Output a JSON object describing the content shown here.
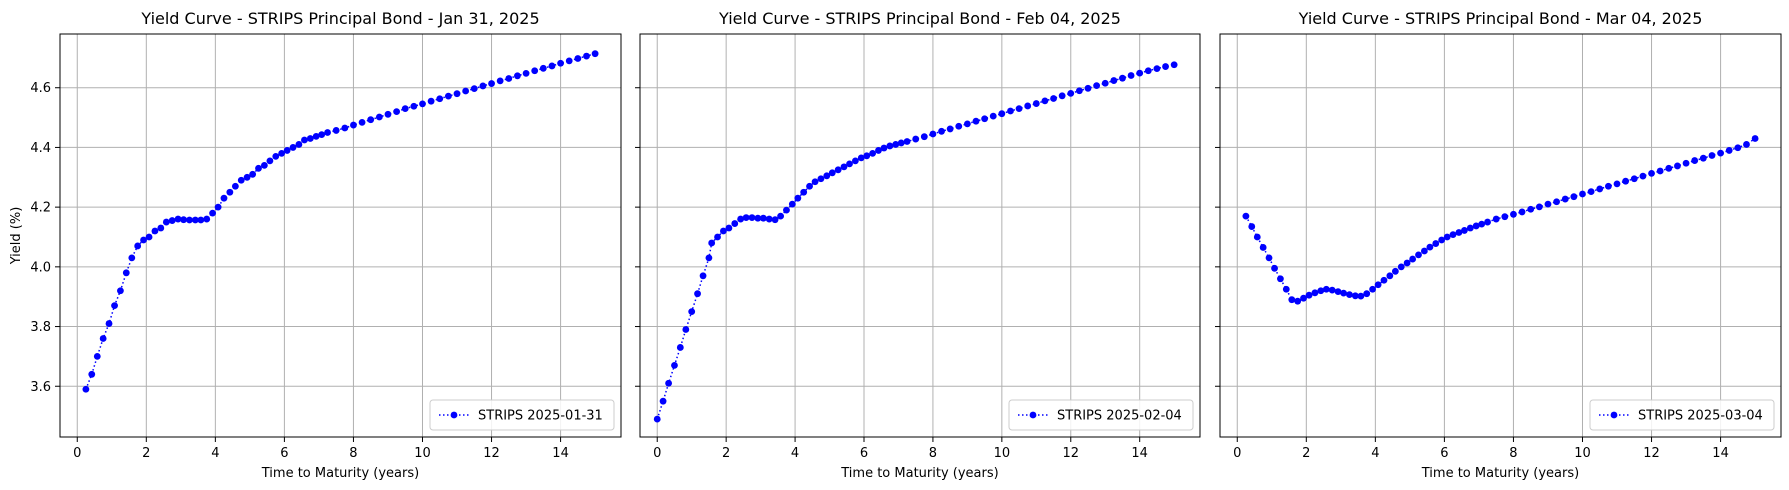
{
  "chart_data": [
    {
      "type": "line",
      "title": "Yield Curve - STRIPS Principal Bond - Jan 31, 2025",
      "xlabel": "Time to Maturity (years)",
      "ylabel": "Yield (%)",
      "xlim": [
        -0.5,
        15.75
      ],
      "ylim": [
        3.43,
        4.78
      ],
      "xticks": [
        0,
        2,
        4,
        6,
        8,
        10,
        12,
        14
      ],
      "yticks": [
        3.6,
        3.8,
        4.0,
        4.2,
        4.4,
        4.6
      ],
      "ytick_labels_shown": true,
      "grid": true,
      "legend_position": "lower right",
      "series": [
        {
          "name": "STRIPS 2025-01-31",
          "color": "#0000ff",
          "points": [
            [
              0.25,
              3.59
            ],
            [
              0.42,
              3.64
            ],
            [
              0.58,
              3.7
            ],
            [
              0.75,
              3.76
            ],
            [
              0.92,
              3.81
            ],
            [
              1.08,
              3.87
            ],
            [
              1.25,
              3.92
            ],
            [
              1.42,
              3.98
            ],
            [
              1.58,
              4.03
            ],
            [
              1.75,
              4.07
            ],
            [
              1.92,
              4.09
            ],
            [
              2.08,
              4.1
            ],
            [
              2.25,
              4.12
            ],
            [
              2.42,
              4.13
            ],
            [
              2.58,
              4.15
            ],
            [
              2.75,
              4.155
            ],
            [
              2.92,
              4.16
            ],
            [
              3.08,
              4.158
            ],
            [
              3.25,
              4.157
            ],
            [
              3.42,
              4.157
            ],
            [
              3.58,
              4.157
            ],
            [
              3.75,
              4.16
            ],
            [
              3.92,
              4.18
            ],
            [
              4.08,
              4.2
            ],
            [
              4.25,
              4.23
            ],
            [
              4.42,
              4.25
            ],
            [
              4.58,
              4.27
            ],
            [
              4.75,
              4.29
            ],
            [
              4.92,
              4.3
            ],
            [
              5.08,
              4.31
            ],
            [
              5.25,
              4.33
            ],
            [
              5.42,
              4.34
            ],
            [
              5.58,
              4.355
            ],
            [
              5.75,
              4.37
            ],
            [
              5.92,
              4.38
            ],
            [
              6.08,
              4.39
            ],
            [
              6.25,
              4.4
            ],
            [
              6.42,
              4.41
            ],
            [
              6.58,
              4.425
            ],
            [
              6.75,
              4.43
            ],
            [
              6.92,
              4.437
            ],
            [
              7.08,
              4.443
            ],
            [
              7.25,
              4.45
            ],
            [
              7.5,
              4.457
            ],
            [
              7.75,
              4.465
            ],
            [
              8.0,
              4.475
            ],
            [
              8.25,
              4.484
            ],
            [
              8.5,
              4.493
            ],
            [
              8.75,
              4.502
            ],
            [
              9.0,
              4.511
            ],
            [
              9.25,
              4.52
            ],
            [
              9.5,
              4.53
            ],
            [
              9.75,
              4.538
            ],
            [
              10.0,
              4.546
            ],
            [
              10.25,
              4.555
            ],
            [
              10.5,
              4.563
            ],
            [
              10.75,
              4.572
            ],
            [
              11.0,
              4.58
            ],
            [
              11.25,
              4.589
            ],
            [
              11.5,
              4.597
            ],
            [
              11.75,
              4.606
            ],
            [
              12.0,
              4.614
            ],
            [
              12.25,
              4.623
            ],
            [
              12.5,
              4.631
            ],
            [
              12.75,
              4.64
            ],
            [
              13.0,
              4.648
            ],
            [
              13.25,
              4.657
            ],
            [
              13.5,
              4.665
            ],
            [
              13.75,
              4.673
            ],
            [
              14.0,
              4.682
            ],
            [
              14.25,
              4.69
            ],
            [
              14.5,
              4.698
            ],
            [
              14.75,
              4.706
            ],
            [
              15.0,
              4.714
            ]
          ]
        }
      ]
    },
    {
      "type": "line",
      "title": "Yield Curve - STRIPS Principal Bond - Feb 04, 2025",
      "xlabel": "Time to Maturity (years)",
      "ylabel": "",
      "xlim": [
        -0.5,
        15.75
      ],
      "ylim": [
        3.43,
        4.78
      ],
      "xticks": [
        0,
        2,
        4,
        6,
        8,
        10,
        12,
        14
      ],
      "yticks": [
        3.6,
        3.8,
        4.0,
        4.2,
        4.4,
        4.6
      ],
      "ytick_labels_shown": false,
      "grid": true,
      "legend_position": "lower right",
      "series": [
        {
          "name": "STRIPS 2025-02-04",
          "color": "#0000ff",
          "points": [
            [
              0.0,
              3.49
            ],
            [
              0.17,
              3.55
            ],
            [
              0.33,
              3.61
            ],
            [
              0.5,
              3.67
            ],
            [
              0.67,
              3.73
            ],
            [
              0.83,
              3.79
            ],
            [
              1.0,
              3.85
            ],
            [
              1.17,
              3.91
            ],
            [
              1.33,
              3.97
            ],
            [
              1.5,
              4.03
            ],
            [
              1.58,
              4.08
            ],
            [
              1.75,
              4.1
            ],
            [
              1.92,
              4.12
            ],
            [
              2.08,
              4.13
            ],
            [
              2.25,
              4.145
            ],
            [
              2.42,
              4.16
            ],
            [
              2.58,
              4.165
            ],
            [
              2.75,
              4.165
            ],
            [
              2.92,
              4.163
            ],
            [
              3.08,
              4.163
            ],
            [
              3.25,
              4.16
            ],
            [
              3.42,
              4.158
            ],
            [
              3.58,
              4.17
            ],
            [
              3.75,
              4.19
            ],
            [
              3.92,
              4.21
            ],
            [
              4.08,
              4.23
            ],
            [
              4.25,
              4.25
            ],
            [
              4.42,
              4.27
            ],
            [
              4.58,
              4.285
            ],
            [
              4.75,
              4.295
            ],
            [
              4.92,
              4.305
            ],
            [
              5.08,
              4.315
            ],
            [
              5.25,
              4.325
            ],
            [
              5.42,
              4.335
            ],
            [
              5.58,
              4.345
            ],
            [
              5.75,
              4.355
            ],
            [
              5.92,
              4.365
            ],
            [
              6.08,
              4.372
            ],
            [
              6.25,
              4.38
            ],
            [
              6.42,
              4.39
            ],
            [
              6.58,
              4.398
            ],
            [
              6.75,
              4.405
            ],
            [
              6.92,
              4.41
            ],
            [
              7.08,
              4.415
            ],
            [
              7.25,
              4.42
            ],
            [
              7.5,
              4.428
            ],
            [
              7.75,
              4.436
            ],
            [
              8.0,
              4.445
            ],
            [
              8.25,
              4.454
            ],
            [
              8.5,
              4.462
            ],
            [
              8.75,
              4.471
            ],
            [
              9.0,
              4.479
            ],
            [
              9.25,
              4.488
            ],
            [
              9.5,
              4.496
            ],
            [
              9.75,
              4.505
            ],
            [
              10.0,
              4.513
            ],
            [
              10.25,
              4.522
            ],
            [
              10.5,
              4.53
            ],
            [
              10.75,
              4.539
            ],
            [
              11.0,
              4.547
            ],
            [
              11.25,
              4.556
            ],
            [
              11.5,
              4.564
            ],
            [
              11.75,
              4.573
            ],
            [
              12.0,
              4.581
            ],
            [
              12.25,
              4.59
            ],
            [
              12.5,
              4.598
            ],
            [
              12.75,
              4.607
            ],
            [
              13.0,
              4.615
            ],
            [
              13.25,
              4.624
            ],
            [
              13.5,
              4.632
            ],
            [
              13.75,
              4.641
            ],
            [
              14.0,
              4.649
            ],
            [
              14.25,
              4.657
            ],
            [
              14.5,
              4.664
            ],
            [
              14.75,
              4.671
            ],
            [
              15.0,
              4.677
            ]
          ]
        }
      ]
    },
    {
      "type": "line",
      "title": "Yield Curve - STRIPS Principal Bond - Mar 04, 2025",
      "xlabel": "Time to Maturity (years)",
      "ylabel": "",
      "xlim": [
        -0.5,
        15.75
      ],
      "ylim": [
        3.43,
        4.78
      ],
      "xticks": [
        0,
        2,
        4,
        6,
        8,
        10,
        12,
        14
      ],
      "yticks": [
        3.6,
        3.8,
        4.0,
        4.2,
        4.4,
        4.6
      ],
      "ytick_labels_shown": false,
      "grid": true,
      "legend_position": "lower right",
      "series": [
        {
          "name": "STRIPS 2025-03-04",
          "color": "#0000ff",
          "points": [
            [
              0.25,
              4.17
            ],
            [
              0.42,
              4.135
            ],
            [
              0.58,
              4.1
            ],
            [
              0.75,
              4.065
            ],
            [
              0.92,
              4.03
            ],
            [
              1.08,
              3.995
            ],
            [
              1.25,
              3.96
            ],
            [
              1.42,
              3.925
            ],
            [
              1.58,
              3.89
            ],
            [
              1.75,
              3.885
            ],
            [
              1.92,
              3.895
            ],
            [
              2.08,
              3.905
            ],
            [
              2.25,
              3.913
            ],
            [
              2.42,
              3.92
            ],
            [
              2.58,
              3.925
            ],
            [
              2.75,
              3.922
            ],
            [
              2.92,
              3.917
            ],
            [
              3.08,
              3.912
            ],
            [
              3.25,
              3.907
            ],
            [
              3.42,
              3.903
            ],
            [
              3.58,
              3.902
            ],
            [
              3.75,
              3.91
            ],
            [
              3.92,
              3.925
            ],
            [
              4.08,
              3.94
            ],
            [
              4.25,
              3.955
            ],
            [
              4.42,
              3.97
            ],
            [
              4.58,
              3.985
            ],
            [
              4.75,
              4.0
            ],
            [
              4.92,
              4.013
            ],
            [
              5.08,
              4.026
            ],
            [
              5.25,
              4.04
            ],
            [
              5.42,
              4.053
            ],
            [
              5.58,
              4.066
            ],
            [
              5.75,
              4.078
            ],
            [
              5.92,
              4.09
            ],
            [
              6.08,
              4.1
            ],
            [
              6.25,
              4.108
            ],
            [
              6.42,
              4.115
            ],
            [
              6.58,
              4.122
            ],
            [
              6.75,
              4.13
            ],
            [
              6.92,
              4.137
            ],
            [
              7.08,
              4.143
            ],
            [
              7.25,
              4.15
            ],
            [
              7.5,
              4.16
            ],
            [
              7.75,
              4.168
            ],
            [
              8.0,
              4.176
            ],
            [
              8.25,
              4.184
            ],
            [
              8.5,
              4.193
            ],
            [
              8.75,
              4.201
            ],
            [
              9.0,
              4.21
            ],
            [
              9.25,
              4.218
            ],
            [
              9.5,
              4.227
            ],
            [
              9.75,
              4.235
            ],
            [
              10.0,
              4.244
            ],
            [
              10.25,
              4.252
            ],
            [
              10.5,
              4.261
            ],
            [
              10.75,
              4.27
            ],
            [
              11.0,
              4.278
            ],
            [
              11.25,
              4.287
            ],
            [
              11.5,
              4.295
            ],
            [
              11.75,
              4.304
            ],
            [
              12.0,
              4.313
            ],
            [
              12.25,
              4.321
            ],
            [
              12.5,
              4.33
            ],
            [
              12.75,
              4.338
            ],
            [
              13.0,
              4.347
            ],
            [
              13.25,
              4.356
            ],
            [
              13.5,
              4.364
            ],
            [
              13.75,
              4.373
            ],
            [
              14.0,
              4.381
            ],
            [
              14.25,
              4.39
            ],
            [
              14.5,
              4.399
            ],
            [
              14.75,
              4.41
            ],
            [
              15.0,
              4.43
            ]
          ]
        }
      ]
    }
  ]
}
